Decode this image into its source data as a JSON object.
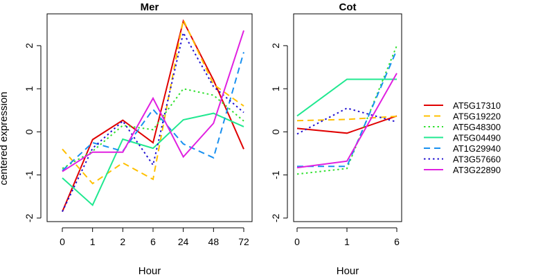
{
  "figure": {
    "ylabel": "centered expression",
    "colors": {
      "AT5G17310": "#e00000",
      "AT5G19220": "#ffc000",
      "AT5G48300": "#30e030",
      "AT5G04490": "#20e890",
      "AT1G29940": "#1890f0",
      "AT3G57660": "#2010d0",
      "AT3G22890": "#e020e0"
    },
    "dash_styles": {
      "AT5G17310": "solid",
      "AT5G19220": "dashed",
      "AT5G48300": "dotted",
      "AT5G04490": "solid",
      "AT1G29940": "dashed",
      "AT3G57660": "dotted",
      "AT3G22890": "solid"
    },
    "legend": [
      "AT5G17310",
      "AT5G19220",
      "AT5G48300",
      "AT5G04490",
      "AT1G29940",
      "AT3G57660",
      "AT3G22890"
    ]
  },
  "chart_data": [
    {
      "type": "line",
      "title": "Mer",
      "xlabel": "Hour",
      "ylabel": "centered expression",
      "categories": [
        "0",
        "1",
        "2",
        "6",
        "24",
        "48",
        "72"
      ],
      "ylim": [
        -2,
        2.5
      ],
      "yticks": [
        "-2",
        "-1",
        "0",
        "1",
        "2"
      ],
      "grid": false,
      "series": [
        {
          "name": "AT5G17310",
          "values": [
            -1.85,
            -0.18,
            0.27,
            -0.25,
            2.57,
            1.2,
            -0.4
          ]
        },
        {
          "name": "AT5G19220",
          "values": [
            -0.4,
            -1.2,
            -0.72,
            -1.1,
            2.6,
            1.1,
            0.6
          ]
        },
        {
          "name": "AT5G48300",
          "values": [
            -0.85,
            -0.45,
            0.15,
            0.05,
            1.0,
            0.85,
            0.25
          ]
        },
        {
          "name": "AT5G04490",
          "values": [
            -1.07,
            -1.7,
            -0.17,
            -0.38,
            0.28,
            0.43,
            0.12
          ]
        },
        {
          "name": "AT1G29940",
          "values": [
            -0.9,
            -0.25,
            -0.45,
            0.52,
            -0.28,
            -0.6,
            1.85
          ]
        },
        {
          "name": "AT3G57660",
          "values": [
            -1.85,
            -0.38,
            0.25,
            -0.77,
            2.3,
            1.05,
            0.45
          ]
        },
        {
          "name": "AT3G22890",
          "values": [
            -0.92,
            -0.47,
            -0.47,
            0.78,
            -0.58,
            0.2,
            2.35
          ]
        }
      ]
    },
    {
      "type": "line",
      "title": "Cot",
      "xlabel": "Hour",
      "categories": [
        "0",
        "1",
        "6"
      ],
      "ylim": [
        -2,
        2.5
      ],
      "yticks": [
        "-2",
        "-1",
        "0",
        "1",
        "2"
      ],
      "grid": false,
      "series": [
        {
          "name": "AT5G17310",
          "values": [
            0.08,
            -0.03,
            0.37
          ]
        },
        {
          "name": "AT5G19220",
          "values": [
            0.26,
            0.29,
            0.36
          ]
        },
        {
          "name": "AT5G48300",
          "values": [
            -0.98,
            -0.85,
            2.0
          ]
        },
        {
          "name": "AT5G04490",
          "values": [
            0.37,
            1.22,
            1.22
          ]
        },
        {
          "name": "AT1G29940",
          "values": [
            -0.8,
            -0.8,
            1.9
          ]
        },
        {
          "name": "AT3G57660",
          "values": [
            -0.05,
            0.55,
            0.23
          ]
        },
        {
          "name": "AT3G22890",
          "values": [
            -0.83,
            -0.68,
            1.36
          ]
        }
      ]
    }
  ]
}
